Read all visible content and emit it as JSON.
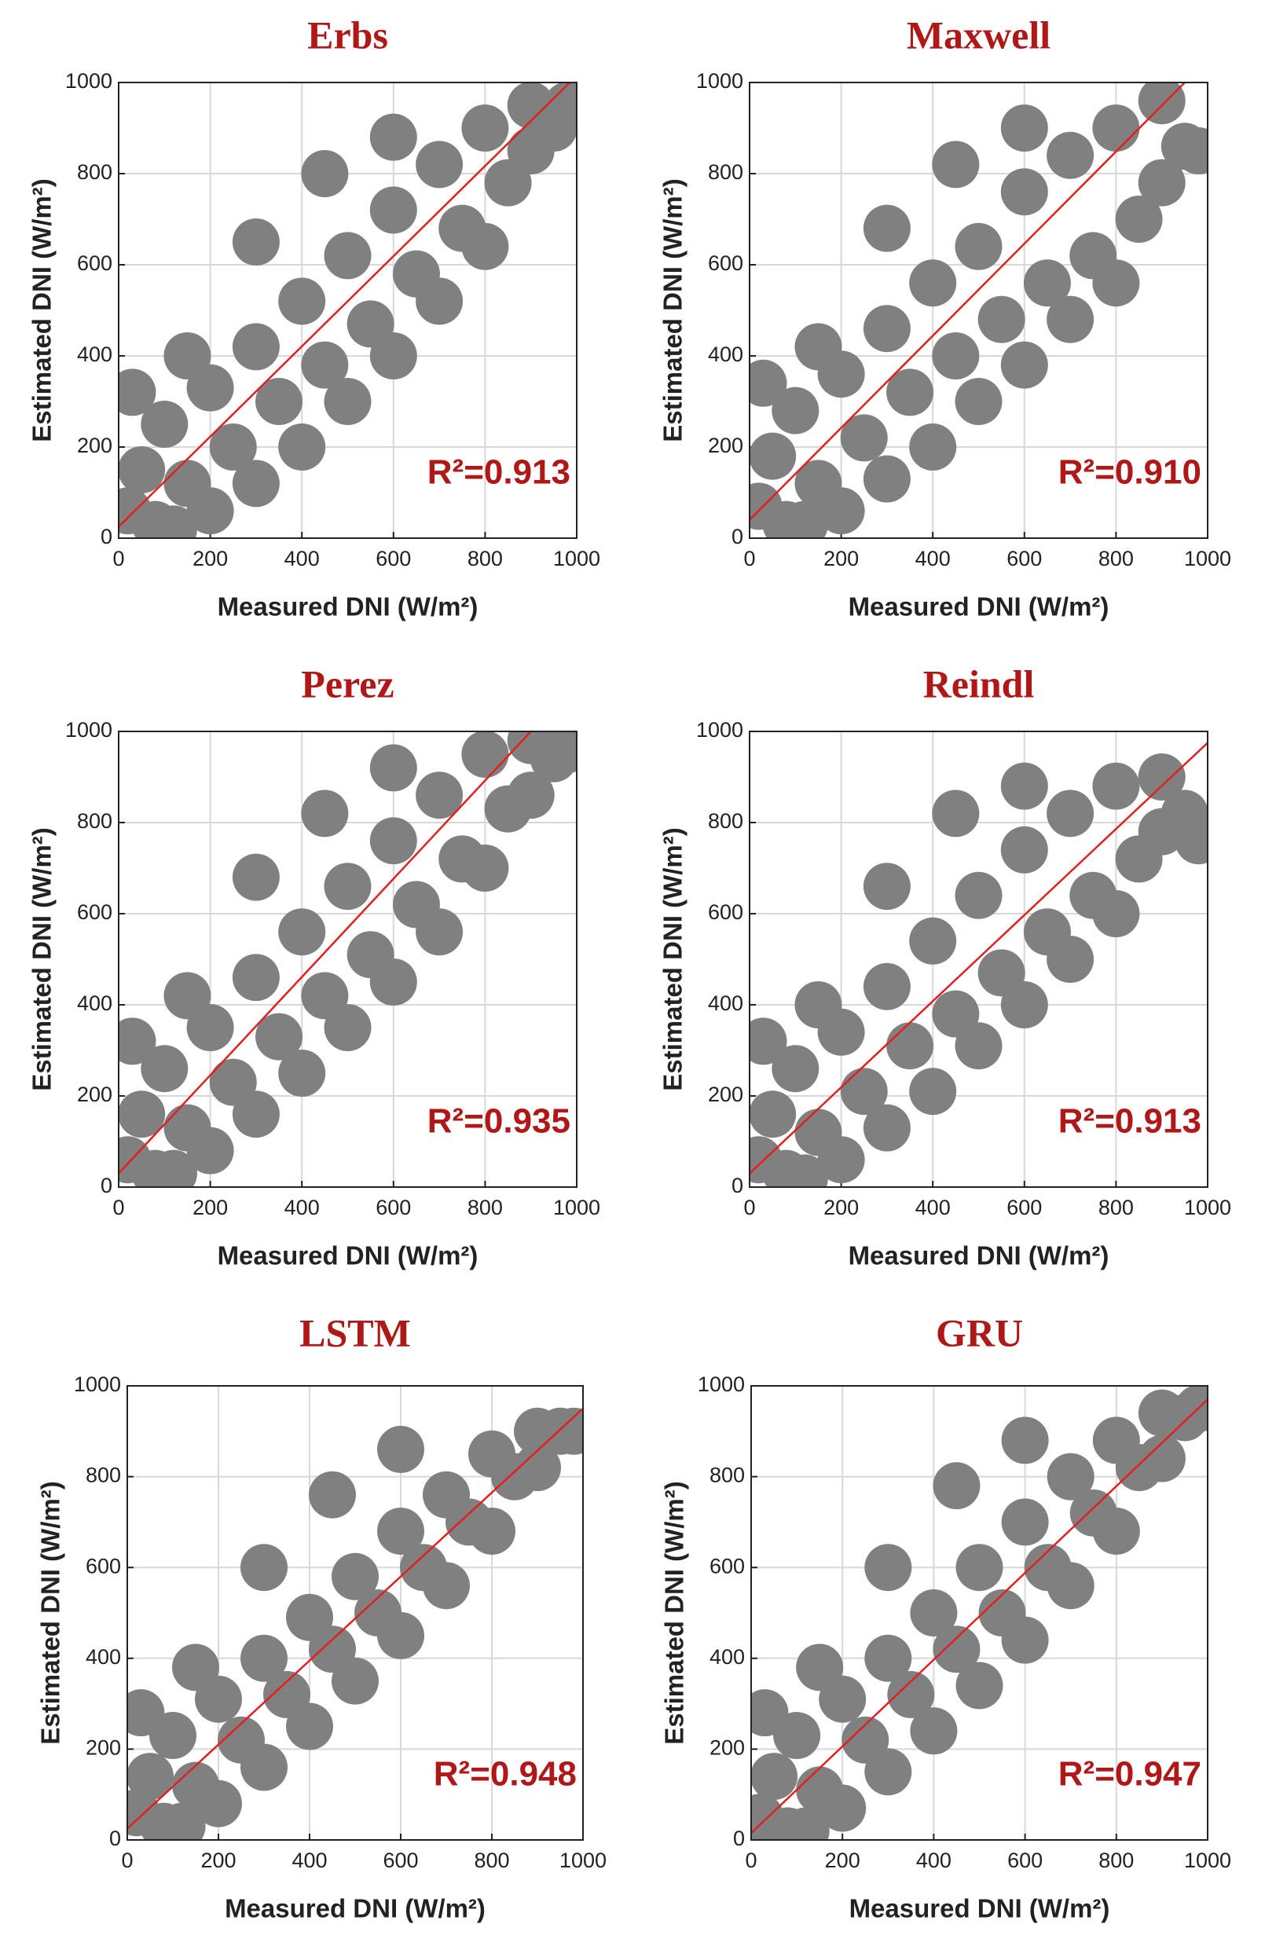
{
  "chart_data": [
    {
      "type": "scatter",
      "title": "Erbs",
      "xlabel": "Measured DNI (W/m²)",
      "ylabel": "Estimated DNI (W/m²)",
      "annotation": "R²=0.913",
      "x": [
        20,
        50,
        80,
        100,
        150,
        200,
        200,
        250,
        300,
        300,
        350,
        400,
        400,
        450,
        500,
        500,
        550,
        600,
        600,
        650,
        700,
        700,
        750,
        800,
        800,
        850,
        900,
        900,
        950,
        980,
        150,
        300,
        450,
        600,
        120,
        30
      ],
      "y": [
        60,
        150,
        30,
        250,
        120,
        330,
        60,
        200,
        420,
        120,
        300,
        520,
        200,
        380,
        620,
        300,
        470,
        720,
        400,
        580,
        820,
        520,
        680,
        900,
        640,
        780,
        950,
        850,
        900,
        950,
        400,
        650,
        800,
        880,
        20,
        320
      ],
      "color": "#808080",
      "fit": {
        "x": [
          0,
          985
        ],
        "y": [
          25,
          1000
        ],
        "color": "#e02020"
      },
      "xlim": [
        0,
        1000
      ],
      "ylim": [
        0,
        1000
      ],
      "xticks": [
        0,
        200,
        400,
        600,
        800,
        1000
      ],
      "yticks": [
        0,
        200,
        400,
        600,
        800,
        1000
      ],
      "grid": true
    },
    {
      "type": "scatter",
      "title": "Maxwell",
      "xlabel": "Measured DNI (W/m²)",
      "ylabel": "Estimated DNI (W/m²)",
      "annotation": "R²=0.910",
      "x": [
        20,
        50,
        80,
        100,
        150,
        200,
        200,
        250,
        300,
        300,
        350,
        400,
        400,
        450,
        500,
        500,
        550,
        600,
        600,
        650,
        700,
        700,
        750,
        800,
        800,
        850,
        900,
        900,
        950,
        980,
        150,
        300,
        450,
        600,
        120,
        30
      ],
      "y": [
        70,
        180,
        30,
        280,
        120,
        360,
        60,
        220,
        460,
        130,
        320,
        560,
        200,
        400,
        640,
        300,
        480,
        760,
        380,
        560,
        840,
        480,
        620,
        900,
        560,
        700,
        960,
        780,
        860,
        850,
        420,
        680,
        820,
        900,
        30,
        340
      ],
      "color": "#808080",
      "fit": {
        "x": [
          0,
          950
        ],
        "y": [
          40,
          1000
        ],
        "color": "#e02020"
      },
      "xlim": [
        0,
        1000
      ],
      "ylim": [
        0,
        1000
      ],
      "xticks": [
        0,
        200,
        400,
        600,
        800,
        1000
      ],
      "yticks": [
        0,
        200,
        400,
        600,
        800,
        1000
      ],
      "grid": true
    },
    {
      "type": "scatter",
      "title": "Perez",
      "xlabel": "Measured DNI (W/m²)",
      "ylabel": "Estimated DNI (W/m²)",
      "annotation": "R²=0.935",
      "x": [
        20,
        50,
        80,
        100,
        150,
        200,
        200,
        250,
        300,
        300,
        350,
        400,
        400,
        450,
        500,
        500,
        550,
        600,
        600,
        650,
        700,
        700,
        750,
        800,
        800,
        850,
        900,
        900,
        950,
        980,
        150,
        300,
        450,
        600,
        120,
        30
      ],
      "y": [
        60,
        160,
        30,
        260,
        130,
        350,
        80,
        230,
        460,
        160,
        330,
        560,
        250,
        420,
        660,
        350,
        510,
        760,
        450,
        620,
        860,
        560,
        720,
        950,
        700,
        830,
        980,
        860,
        940,
        960,
        420,
        680,
        820,
        920,
        30,
        320
      ],
      "color": "#808080",
      "fit": {
        "x": [
          0,
          900
        ],
        "y": [
          30,
          1000
        ],
        "color": "#e02020"
      },
      "xlim": [
        0,
        1000
      ],
      "ylim": [
        0,
        1000
      ],
      "xticks": [
        0,
        200,
        400,
        600,
        800,
        1000
      ],
      "yticks": [
        0,
        200,
        400,
        600,
        800,
        1000
      ],
      "grid": true
    },
    {
      "type": "scatter",
      "title": "Reindl",
      "xlabel": "Measured DNI (W/m²)",
      "ylabel": "Estimated DNI (W/m²)",
      "annotation": "R²=0.913",
      "x": [
        20,
        50,
        80,
        100,
        150,
        200,
        200,
        250,
        300,
        300,
        350,
        400,
        400,
        450,
        500,
        500,
        550,
        600,
        600,
        650,
        700,
        700,
        750,
        800,
        800,
        850,
        900,
        900,
        950,
        980,
        150,
        300,
        450,
        600,
        120,
        30
      ],
      "y": [
        60,
        160,
        30,
        260,
        120,
        340,
        60,
        210,
        440,
        130,
        310,
        540,
        210,
        380,
        640,
        310,
        470,
        740,
        400,
        560,
        820,
        500,
        640,
        880,
        600,
        720,
        900,
        780,
        820,
        760,
        400,
        660,
        820,
        880,
        20,
        320
      ],
      "color": "#808080",
      "fit": {
        "x": [
          0,
          1000
        ],
        "y": [
          30,
          975
        ],
        "color": "#e02020"
      },
      "xlim": [
        0,
        1000
      ],
      "ylim": [
        0,
        1000
      ],
      "xticks": [
        0,
        200,
        400,
        600,
        800,
        1000
      ],
      "yticks": [
        0,
        200,
        400,
        600,
        800,
        1000
      ],
      "grid": true
    },
    {
      "type": "scatter",
      "title": "LSTM",
      "xlabel": "Measured DNI (W/m²)",
      "ylabel": "Estimated DNI (W/m²)",
      "annotation": "R²=0.948",
      "x": [
        20,
        50,
        80,
        100,
        150,
        200,
        200,
        250,
        300,
        300,
        350,
        400,
        400,
        450,
        500,
        500,
        550,
        600,
        600,
        650,
        700,
        700,
        750,
        800,
        800,
        850,
        900,
        900,
        950,
        980,
        150,
        300,
        450,
        600,
        120,
        30
      ],
      "y": [
        60,
        140,
        30,
        230,
        120,
        310,
        80,
        220,
        400,
        160,
        320,
        490,
        250,
        420,
        580,
        350,
        500,
        680,
        450,
        600,
        760,
        560,
        700,
        850,
        680,
        800,
        900,
        820,
        900,
        900,
        380,
        600,
        760,
        860,
        30,
        280
      ],
      "color": "#808080",
      "fit": {
        "x": [
          0,
          1000
        ],
        "y": [
          25,
          950
        ],
        "color": "#e02020"
      },
      "xlim": [
        0,
        1000
      ],
      "ylim": [
        0,
        1000
      ],
      "xticks": [
        0,
        200,
        400,
        600,
        800,
        1000
      ],
      "yticks": [
        0,
        200,
        400,
        600,
        800,
        1000
      ],
      "grid": true
    },
    {
      "type": "scatter",
      "title": "GRU",
      "xlabel": "Measured DNI (W/m²)",
      "ylabel": "Estimated DNI (W/m²)",
      "annotation": "R²=0.947",
      "x": [
        20,
        50,
        80,
        100,
        150,
        200,
        200,
        250,
        300,
        300,
        350,
        400,
        400,
        450,
        500,
        500,
        550,
        600,
        600,
        650,
        700,
        700,
        750,
        800,
        800,
        850,
        900,
        900,
        950,
        980,
        150,
        300,
        450,
        600,
        120,
        30
      ],
      "y": [
        50,
        140,
        20,
        230,
        110,
        310,
        70,
        220,
        400,
        150,
        320,
        500,
        240,
        420,
        600,
        340,
        500,
        700,
        440,
        600,
        800,
        560,
        720,
        880,
        680,
        820,
        940,
        840,
        930,
        950,
        380,
        600,
        780,
        880,
        20,
        280
      ],
      "color": "#808080",
      "fit": {
        "x": [
          0,
          1000
        ],
        "y": [
          15,
          970
        ],
        "color": "#e02020"
      },
      "xlim": [
        0,
        1000
      ],
      "ylim": [
        0,
        1000
      ],
      "xticks": [
        0,
        200,
        400,
        600,
        800,
        1000
      ],
      "yticks": [
        0,
        200,
        400,
        600,
        800,
        1000
      ],
      "grid": true
    }
  ]
}
